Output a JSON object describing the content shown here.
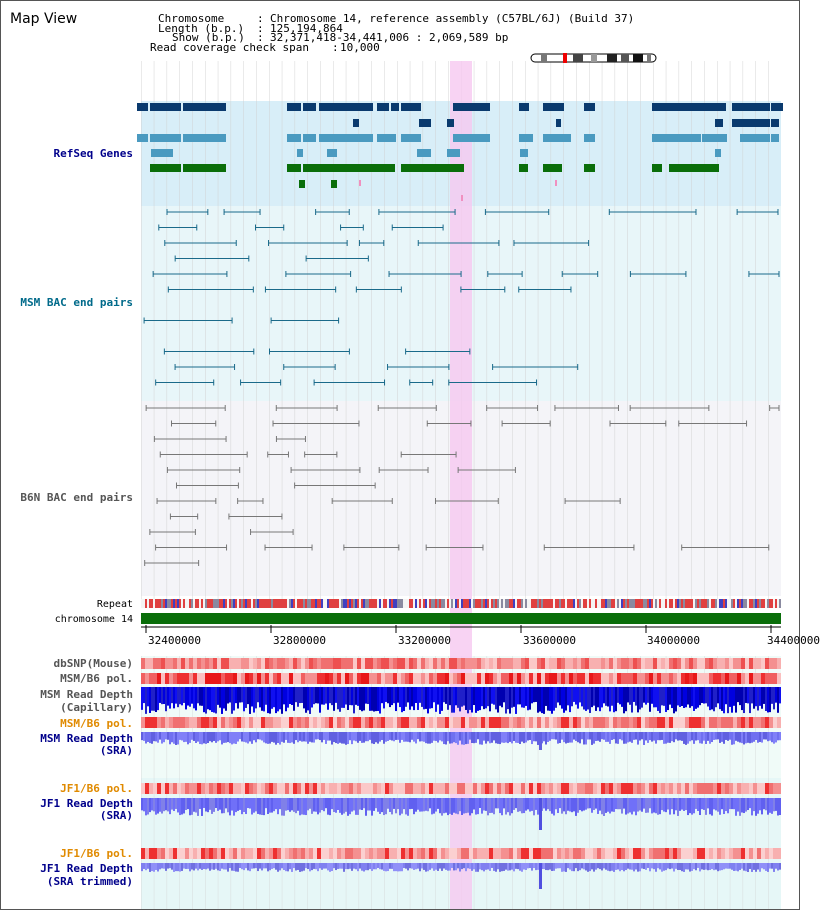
{
  "title": "Map View",
  "header": {
    "chromosome_key": "Chromosome",
    "chromosome_val": "Chromosome 14, reference assembly (C57BL/6J) (Build 37)",
    "length_key": "Length (b.p.)",
    "length_val": "125,194,864",
    "show_key": "Show (b.p.)",
    "show_val": "32,371,418-34,441,006 : 2,069,589 bp",
    "coverage_key": "Read coverage check span",
    "coverage_val": "10,000"
  },
  "tracks": {
    "refseq": "RefSeq Genes",
    "msm_bac": "MSM BAC end pairs",
    "b6n_bac": "B6N BAC end pairs",
    "repeat": "Repeat",
    "chromosome": "chromosome 14",
    "dbsnp": "dbSNP(Mouse)",
    "msm_b6_pol": "MSM/B6 pol.",
    "msm_depth_cap": "MSM Read Depth",
    "msm_depth_cap_sub": "(Capillary)",
    "msm_b6_pol2": "MSM/B6 pol.",
    "msm_depth_sra": "MSM Read Depth",
    "msm_depth_sra_sub": "(SRA)",
    "jf1_b6_pol": "JF1/B6 pol.",
    "jf1_depth_sra": "JF1 Read Depth",
    "jf1_depth_sra_sub": "(SRA)",
    "jf1_b6_pol2": "JF1/B6 pol.",
    "jf1_depth_trim": "JF1 Read Depth",
    "jf1_depth_trim_sub": "(SRA trimmed)"
  },
  "axis": {
    "ticks": [
      "32400000",
      "32800000",
      "33200000",
      "33600000",
      "34000000",
      "34400000"
    ]
  },
  "colors": {
    "refseq_dark": "#0a3a6e",
    "refseq_mid": "#4a9ac0",
    "refseq_green": "#0a6e0a",
    "msm_line": "#1a6a8a",
    "b6n_line": "#777777",
    "highlight": "#f6c8f0",
    "label_blue": "#00008b",
    "label_teal": "#006a8a",
    "label_gray": "#555555",
    "label_orange": "#e08a00"
  }
}
